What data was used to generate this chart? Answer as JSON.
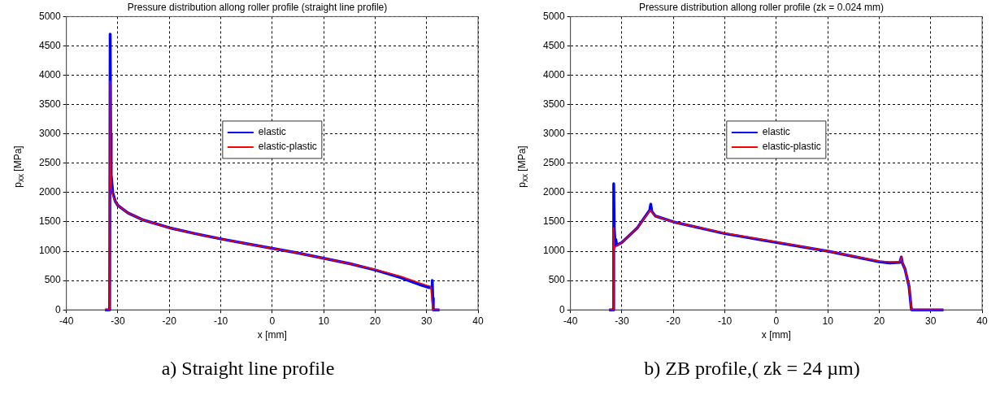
{
  "chart_data": [
    {
      "type": "line",
      "title": "Pressure distribution allong roller profile (straight line profile)",
      "xlabel": "x [mm]",
      "ylabel": "p$_{xx}$ [MPa]",
      "xlim": [
        -40,
        40
      ],
      "xticks": [
        -40,
        -30,
        -20,
        -10,
        0,
        10,
        20,
        30,
        40
      ],
      "ylim": [
        0,
        5000
      ],
      "yticks": [
        0,
        500,
        1000,
        1500,
        2000,
        2500,
        3000,
        3500,
        4000,
        4500,
        5000
      ],
      "grid": true,
      "legend": "center",
      "marker": "none",
      "line_style": "solid",
      "annotations": [
        "a)   Straight line profile"
      ],
      "series": [
        {
          "name": "elastic",
          "color": "#0000ff",
          "x": [
            -32.5,
            -31.6,
            -31.5,
            -31.4,
            -31.3,
            -31.0,
            -30.5,
            -30,
            -28,
            -25,
            -20,
            -15,
            -10,
            -5,
            0,
            5,
            10,
            15,
            20,
            25,
            29,
            30.5,
            31,
            31.1,
            31.2,
            31.3,
            32.5
          ],
          "values": [
            0,
            0,
            4700,
            3000,
            2300,
            2000,
            1850,
            1780,
            1650,
            1530,
            1400,
            1300,
            1210,
            1130,
            1050,
            970,
            880,
            790,
            680,
            550,
            420,
            380,
            380,
            500,
            200,
            0,
            0
          ]
        },
        {
          "name": "elastic-plastic",
          "color": "#ff0000",
          "x": [
            -32.5,
            -31.6,
            -31.5,
            -31.4,
            -31.3,
            -31.0,
            -30.5,
            -30,
            -28,
            -25,
            -20,
            -15,
            -10,
            -5,
            0,
            5,
            10,
            15,
            20,
            25,
            30,
            30.8,
            31.2,
            32.5
          ],
          "values": [
            0,
            0,
            3900,
            2300,
            2100,
            1950,
            1850,
            1780,
            1650,
            1530,
            1400,
            1300,
            1210,
            1130,
            1050,
            970,
            880,
            790,
            690,
            570,
            420,
            400,
            0,
            0
          ]
        }
      ]
    },
    {
      "type": "line",
      "title": "Pressure distribution allong roller profile (zk = 0.024 mm)",
      "xlabel": "x [mm]",
      "ylabel": "p$_{xx}$ [MPa]",
      "xlim": [
        -40,
        40
      ],
      "xticks": [
        -40,
        -30,
        -20,
        -10,
        0,
        10,
        20,
        30,
        40
      ],
      "ylim": [
        0,
        5000
      ],
      "yticks": [
        0,
        500,
        1000,
        1500,
        2000,
        2500,
        3000,
        3500,
        4000,
        4500,
        5000
      ],
      "grid": true,
      "legend": "center",
      "marker": "none",
      "line_style": "solid",
      "annotations": [
        "b) ZB profile,( zk = 24 µm)"
      ],
      "series": [
        {
          "name": "elastic",
          "color": "#0000ff",
          "x": [
            -32.5,
            -31.7,
            -31.6,
            -31.5,
            -31.3,
            -31.2,
            -31.0,
            -30,
            -27,
            -24.6,
            -24.4,
            -24.2,
            -23.5,
            -20,
            -10,
            0,
            10,
            20,
            22,
            24,
            24.3,
            24.5,
            25,
            25.8,
            26.2,
            26.3,
            32.5
          ],
          "values": [
            0,
            0,
            2150,
            1400,
            1100,
            1200,
            1100,
            1150,
            1400,
            1700,
            1800,
            1680,
            1600,
            1500,
            1300,
            1150,
            1000,
            820,
            800,
            810,
            900,
            800,
            700,
            400,
            50,
            0,
            0
          ]
        },
        {
          "name": "elastic-plastic",
          "color": "#ff0000",
          "x": [
            -32.5,
            -31.7,
            -31.6,
            -31.5,
            -31.0,
            -30,
            -27,
            -24.5,
            -24.3,
            -23.5,
            -20,
            -10,
            0,
            10,
            20,
            22,
            24,
            24.3,
            24.5,
            25,
            25.8,
            26.2,
            26.3,
            32.5
          ],
          "values": [
            0,
            0,
            1400,
            1050,
            1100,
            1150,
            1400,
            1700,
            1680,
            1600,
            1500,
            1310,
            1160,
            1000,
            830,
            820,
            820,
            900,
            810,
            700,
            400,
            50,
            0,
            0
          ]
        }
      ]
    }
  ]
}
